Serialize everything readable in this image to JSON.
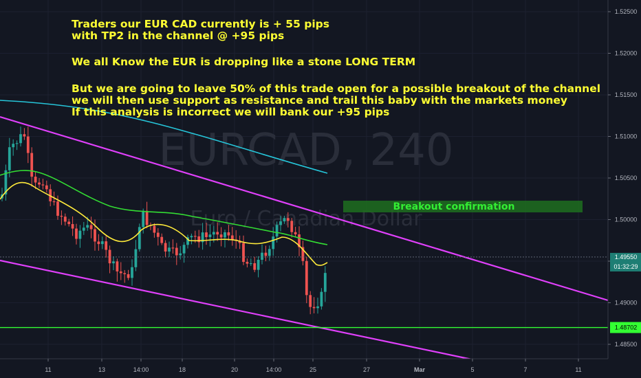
{
  "chart_data": {
    "type": "candlestick",
    "symbol": "EURCAD",
    "timeframe": "240",
    "watermark_title": "EURCAD, 240",
    "watermark_subtitle": "Euro / Canadian Dollar",
    "annotation_lines": [
      "Traders our EUR CAD currently is + 55 pips",
      "with TP2 in the channel @ +95 pips",
      "",
      "We all Know the EUR is dropping like a stone LONG TERM",
      "",
      "But we are going to leave 50% of this trade open for a possible breakout of the channel",
      "we will then use support as resistance and trail this baby with the markets money",
      "If this analysis is incorrect we will bank our +95 pips"
    ],
    "breakout_label": "Breakout confirmation",
    "y_axis": {
      "ticks": [
        "1.52500",
        "1.52000",
        "1.51500",
        "1.51000",
        "1.50500",
        "1.50000",
        "1.49500",
        "1.49000",
        "1.48500"
      ],
      "tick_values": [
        1.525,
        1.52,
        1.515,
        1.51,
        1.505,
        1.5,
        1.495,
        1.49,
        1.485
      ],
      "ylim": [
        1.4825,
        1.5265
      ]
    },
    "x_axis": {
      "labels": [
        "11",
        "13",
        "14:00",
        "18",
        "20",
        "14:00",
        "25",
        "27",
        "Mar",
        "5",
        "7",
        "11"
      ],
      "bold_labels": [
        "Mar"
      ]
    },
    "price_label": {
      "value": "1.49550",
      "countdown": "01:32:29",
      "price": 1.4955
    },
    "support_label": {
      "value": "1.48702",
      "price": 1.48702
    },
    "colors": {
      "up": "#26a69a",
      "down": "#ef5350",
      "channel": "#e040fb",
      "ma_slow": "#26c6da",
      "ma_mid": "#33dd33",
      "ma_fast": "#ffeb3b",
      "support": "#33ff33",
      "annotation": "#ffff33"
    }
  }
}
